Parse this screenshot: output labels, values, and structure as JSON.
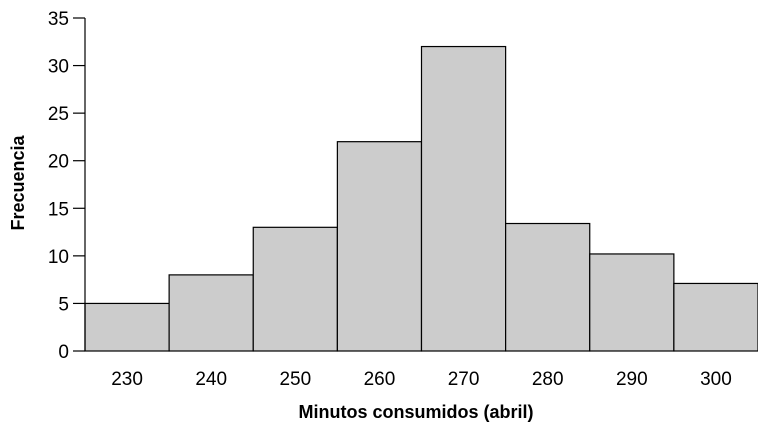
{
  "chart_data": {
    "type": "bar",
    "title": "",
    "xlabel": "Minutos consumidos (abril)",
    "ylabel": "Frecuencia",
    "categories": [
      "230",
      "240",
      "250",
      "260",
      "270",
      "280",
      "290",
      "300"
    ],
    "values": [
      5,
      8,
      13,
      22,
      32,
      13.4,
      10.2,
      7.1
    ],
    "ylim": [
      0,
      35
    ],
    "yticks": [
      0,
      5,
      10,
      15,
      20,
      25,
      30,
      35
    ],
    "grid": false,
    "legend": "none",
    "colors": {
      "bar_fill": "#cccccc",
      "bar_stroke": "#000000",
      "axis": "#000000",
      "text": "#000000"
    }
  }
}
